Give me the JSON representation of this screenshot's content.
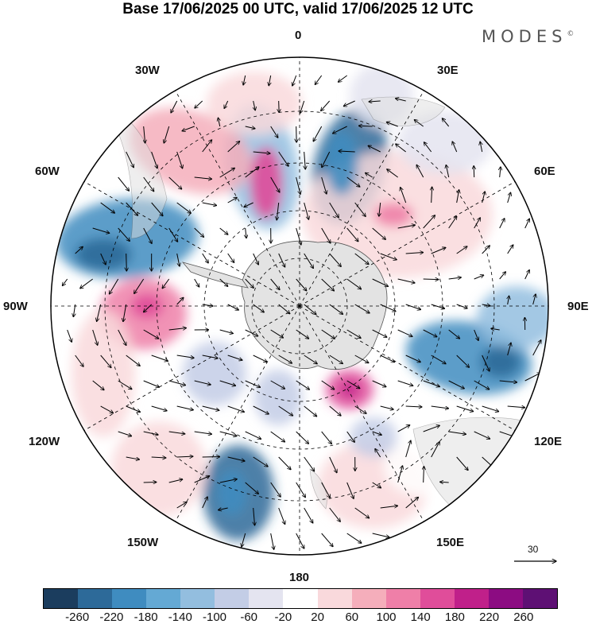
{
  "title": "Base 17/06/2025 00 UTC, valid 17/06/2025 12 UTC",
  "brand": {
    "name": "MODES",
    "mark": "©"
  },
  "map": {
    "projection": "south-polar-stereographic",
    "longitude_labels": {
      "top": "0",
      "top_left": "30W",
      "top_right": "30E",
      "left_upper": "60W",
      "right_upper": "60E",
      "left": "90W",
      "right": "90E",
      "left_lower": "120W",
      "right_lower": "120E",
      "bottom_left": "150W",
      "bottom_right": "150E",
      "bottom": "180"
    },
    "gridlines": "dashed",
    "continent": "Antarctica"
  },
  "wind_scale": {
    "label": "30",
    "icon": "arrow-right-icon"
  },
  "colorbar": {
    "colors": [
      "#1b3d5e",
      "#2d6a99",
      "#3f8cc0",
      "#64a9d4",
      "#93bedf",
      "#c3cde6",
      "#e4e4f0",
      "#ffffff",
      "#f9d9dc",
      "#f5aebb",
      "#ef7fa8",
      "#e04d9a",
      "#c0208a",
      "#8c0c82",
      "#5e1074"
    ],
    "tick_labels": [
      "-260",
      "-220",
      "-180",
      "-140",
      "-100",
      "-60",
      "-20",
      "20",
      "60",
      "100",
      "140",
      "180",
      "220",
      "260"
    ]
  }
}
